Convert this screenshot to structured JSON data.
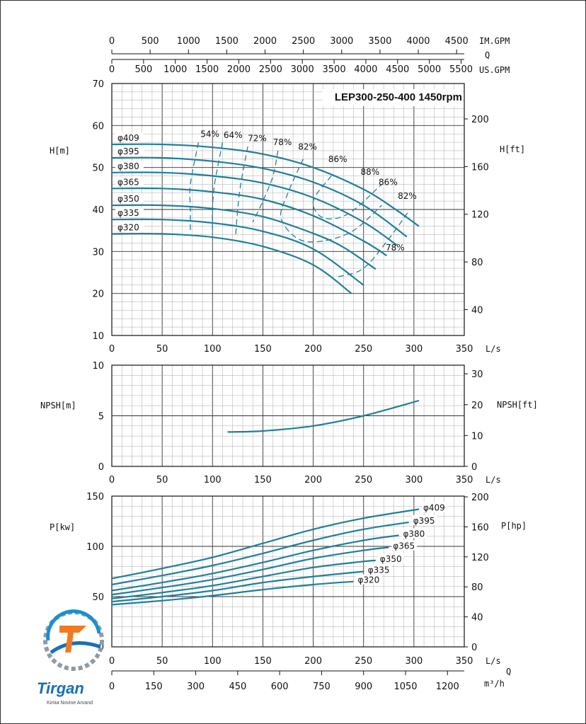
{
  "chart_data": {
    "type": "line",
    "title": "LEP300-250-400 1450rpm",
    "flow_axes": {
      "ls": {
        "label": "L/s",
        "ticks": [
          0,
          50,
          100,
          150,
          200,
          250,
          300,
          350
        ]
      },
      "imgpm": {
        "label": "IM.GPM",
        "ticks": [
          0,
          500,
          1000,
          1500,
          2000,
          2500,
          3000,
          3500,
          4000,
          4500
        ]
      },
      "q_label": "Q",
      "usgpm": {
        "label": "US.GPM",
        "ticks": [
          0,
          500,
          1000,
          1500,
          2000,
          2500,
          3000,
          3500,
          4000,
          4500,
          5000,
          5500
        ]
      },
      "m3h": {
        "label": "m³/h",
        "ticks": [
          0,
          150,
          300,
          450,
          600,
          750,
          900,
          1050,
          1200
        ]
      },
      "q_label_bottom": "Q"
    },
    "head": {
      "ylabel": "H[m]",
      "ylabel_right": "H[ft]",
      "ylim": [
        10,
        70
      ],
      "yticks": [
        10,
        20,
        30,
        40,
        50,
        60,
        70
      ],
      "yticks_right": [
        40,
        80,
        120,
        160,
        200
      ],
      "series": [
        {
          "name": "φ409",
          "x": [
            0,
            50,
            100,
            150,
            200,
            250,
            280,
            305
          ],
          "y": [
            55.5,
            55.5,
            54.8,
            53.2,
            50,
            44.8,
            40.3,
            36
          ]
        },
        {
          "name": "φ395",
          "x": [
            0,
            50,
            100,
            150,
            200,
            250,
            293
          ],
          "y": [
            52.3,
            52.3,
            51.5,
            49.8,
            46.5,
            41,
            33.5
          ]
        },
        {
          "name": "φ380",
          "x": [
            0,
            50,
            100,
            150,
            200,
            250,
            283
          ],
          "y": [
            48.8,
            48.8,
            48,
            46.3,
            42.8,
            37,
            31.5
          ]
        },
        {
          "name": "φ365",
          "x": [
            0,
            50,
            100,
            150,
            200,
            250,
            273
          ],
          "y": [
            45,
            45,
            44.2,
            42.4,
            38.5,
            32.5,
            29
          ]
        },
        {
          "name": "φ350",
          "x": [
            0,
            50,
            100,
            150,
            200,
            230,
            262
          ],
          "y": [
            41,
            41,
            40.2,
            38.3,
            34.3,
            31,
            25.8
          ]
        },
        {
          "name": "φ335",
          "x": [
            0,
            50,
            100,
            150,
            200,
            250
          ],
          "y": [
            37.6,
            37.6,
            36.8,
            34.8,
            30.6,
            22
          ]
        },
        {
          "name": "φ320",
          "x": [
            0,
            50,
            100,
            150,
            200,
            238
          ],
          "y": [
            34.2,
            34.2,
            33.4,
            31.2,
            26.8,
            20
          ]
        }
      ],
      "efficiency_labels": [
        "54%",
        "64%",
        "72%",
        "78%",
        "82%",
        "86%",
        "88%",
        "86%",
        "82%",
        "78%"
      ]
    },
    "npsh": {
      "ylabel": "NPSH[m]",
      "ylabel_right": "NPSH[ft]",
      "ylim": [
        0,
        10
      ],
      "yticks": [
        0,
        5,
        10
      ],
      "yticks_right": [
        0,
        10,
        20,
        30
      ],
      "series": [
        {
          "x": [
            115,
            150,
            200,
            250,
            305
          ],
          "y": [
            3.4,
            3.5,
            4,
            5,
            6.5
          ]
        }
      ]
    },
    "power": {
      "ylabel": "P[kw]",
      "ylabel_right": "P[hp]",
      "ylim": [
        0,
        150
      ],
      "yticks": [
        0,
        50,
        100,
        150
      ],
      "yticks_right": [
        0,
        40,
        80,
        120,
        160,
        200
      ],
      "series": [
        {
          "name": "φ409",
          "x": [
            0,
            50,
            100,
            150,
            200,
            250,
            305
          ],
          "y": [
            68,
            78,
            89,
            103,
            117,
            128,
            137
          ]
        },
        {
          "name": "φ395",
          "x": [
            0,
            50,
            100,
            150,
            200,
            250,
            295
          ],
          "y": [
            62,
            71,
            81,
            93,
            106,
            117,
            124
          ]
        },
        {
          "name": "φ380",
          "x": [
            0,
            50,
            100,
            150,
            200,
            250,
            285
          ],
          "y": [
            56,
            64,
            73,
            84,
            96,
            106,
            111
          ]
        },
        {
          "name": "φ365",
          "x": [
            0,
            50,
            100,
            150,
            200,
            250,
            275
          ],
          "y": [
            52,
            59,
            67,
            77,
            88,
            96,
            99
          ]
        },
        {
          "name": "φ350",
          "x": [
            0,
            50,
            100,
            150,
            200,
            250,
            262
          ],
          "y": [
            48,
            54,
            61,
            70,
            79,
            85,
            86
          ]
        },
        {
          "name": "φ335",
          "x": [
            0,
            50,
            100,
            150,
            200,
            250
          ],
          "y": [
            45,
            50,
            56,
            64,
            70,
            75
          ]
        },
        {
          "name": "φ320",
          "x": [
            0,
            50,
            100,
            150,
            200,
            240
          ],
          "y": [
            42,
            46,
            51,
            57,
            62,
            65
          ]
        }
      ]
    },
    "colors": {
      "curve": "#1f7f9c",
      "grid_major": "#333333",
      "grid_minor": "#aaaaaa"
    }
  },
  "logo": {
    "name": "Tirgan",
    "sub": "Kimia Novine Arvand"
  }
}
